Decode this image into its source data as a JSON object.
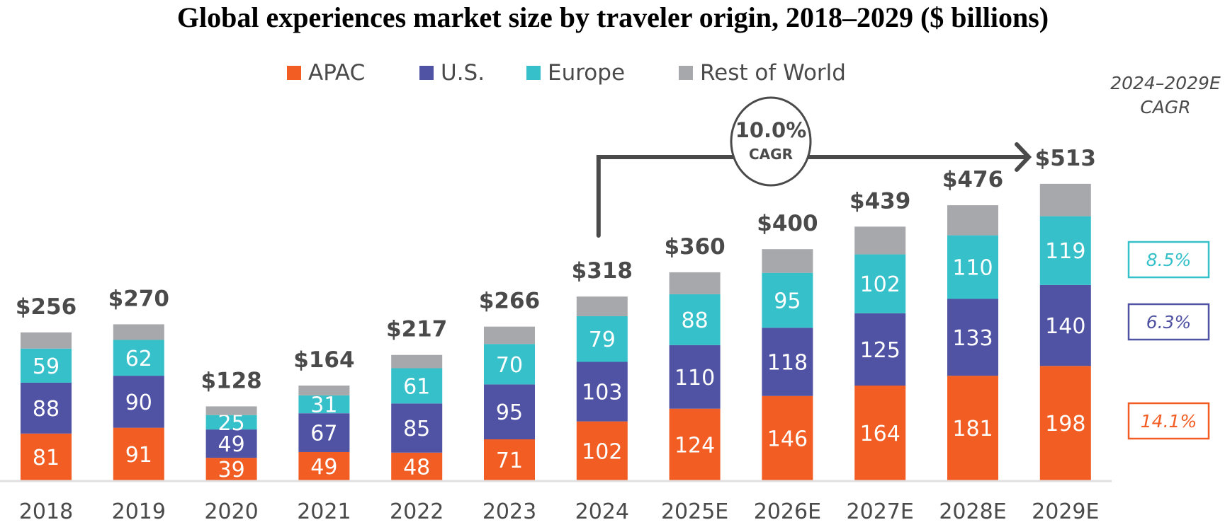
{
  "chart_data": {
    "type": "bar",
    "stacked": true,
    "title": "Global experiences market size by traveler origin, 2018–2029 ($ billions)",
    "xlabel": "",
    "ylabel": "",
    "ylim": [
      0,
      513
    ],
    "grid": false,
    "legend_position": "top-center",
    "categories": [
      "2018",
      "2019",
      "2020",
      "2021",
      "2022",
      "2023",
      "2024",
      "2025E",
      "2026E",
      "2027E",
      "2028E",
      "2029E"
    ],
    "series": [
      {
        "name": "APAC",
        "color": "#f15d22",
        "values": [
          81,
          91,
          39,
          49,
          48,
          71,
          102,
          124,
          146,
          164,
          181,
          198
        ],
        "show_labels": true
      },
      {
        "name": "U.S.",
        "color": "#5052a3",
        "values": [
          88,
          90,
          49,
          67,
          85,
          95,
          103,
          110,
          118,
          125,
          133,
          140
        ],
        "show_labels": true
      },
      {
        "name": "Europe",
        "color": "#36c0c9",
        "values": [
          59,
          62,
          25,
          31,
          61,
          70,
          79,
          88,
          95,
          102,
          110,
          119
        ],
        "show_labels": true
      },
      {
        "name": "Rest of World",
        "color": "#a7a8ac",
        "values": [
          28,
          27,
          15,
          17,
          23,
          30,
          34,
          38,
          41,
          48,
          52,
          56
        ],
        "show_labels": false
      }
    ],
    "totals": [
      256,
      270,
      128,
      164,
      217,
      266,
      318,
      360,
      400,
      439,
      476,
      513
    ],
    "total_labels": [
      "$256",
      "$270",
      "$128",
      "$164",
      "$217",
      "$266",
      "$318",
      "$360",
      "$400",
      "$439",
      "$476",
      "$513"
    ],
    "annotations": {
      "overall_cagr": {
        "value": "10.0%",
        "label": "CAGR",
        "from": "2024",
        "to": "2029E"
      },
      "segment_cagr_header": [
        "2024–2029E",
        "CAGR"
      ],
      "segment_cagr": [
        {
          "series": "Europe",
          "value": "8.5%",
          "color": "#36c0c9"
        },
        {
          "series": "U.S.",
          "value": "6.3%",
          "color": "#5052a3"
        },
        {
          "series": "APAC",
          "value": "14.1%",
          "color": "#f15d22"
        }
      ]
    }
  },
  "colors": {
    "text": "#4a4a4a",
    "axis": "#e0e0e2",
    "arrow": "#4a4a4a"
  }
}
